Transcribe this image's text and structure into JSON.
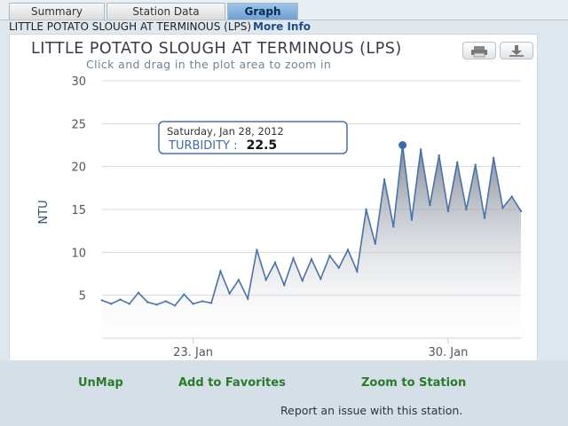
{
  "tabs": [
    {
      "label": "Summary",
      "active": false
    },
    {
      "label": "Station Data",
      "active": false
    },
    {
      "label": "Graph",
      "active": true
    }
  ],
  "station": {
    "name": "LITTLE POTATO SLOUGH AT TERMINOUS (LPS)",
    "more_info": "More Info"
  },
  "chart": {
    "title": "LITTLE POTATO SLOUGH AT TERMINOUS (LPS)",
    "subtitle": "Click and drag in the plot area to zoom in",
    "print_icon": "printer-icon",
    "export_icon": "download-icon",
    "tooltip": {
      "date": "Saturday, Jan 28, 2012",
      "series": "TURBIDITY :",
      "value": "22.5"
    }
  },
  "chart_data": {
    "type": "area",
    "title": "LITTLE POTATO SLOUGH AT TERMINOUS (LPS)",
    "ylabel": "NTU",
    "ylim": [
      0,
      30
    ],
    "yticks": [
      5,
      10,
      15,
      20,
      25,
      30
    ],
    "xlim": [
      "2012-01-20T12:00",
      "2012-02-01T00:00"
    ],
    "xticks": [
      {
        "label": "23. Jan",
        "date": "2012-01-23"
      },
      {
        "label": "30. Jan",
        "date": "2012-01-30"
      }
    ],
    "grid": true,
    "legend": "none",
    "line_color": "#4a72a8",
    "series": [
      {
        "name": "TURBIDITY",
        "points": [
          [
            "2012-01-20T12:00",
            4.4
          ],
          [
            "2012-01-20T18:00",
            4.0
          ],
          [
            "2012-01-21T00:00",
            4.5
          ],
          [
            "2012-01-21T06:00",
            4.0
          ],
          [
            "2012-01-21T12:00",
            5.3
          ],
          [
            "2012-01-21T18:00",
            4.2
          ],
          [
            "2012-01-22T00:00",
            3.9
          ],
          [
            "2012-01-22T06:00",
            4.3
          ],
          [
            "2012-01-22T12:00",
            3.8
          ],
          [
            "2012-01-22T18:00",
            5.1
          ],
          [
            "2012-01-23T00:00",
            4.0
          ],
          [
            "2012-01-23T06:00",
            4.3
          ],
          [
            "2012-01-23T12:00",
            4.1
          ],
          [
            "2012-01-23T18:00",
            7.8
          ],
          [
            "2012-01-24T00:00",
            5.2
          ],
          [
            "2012-01-24T06:00",
            6.8
          ],
          [
            "2012-01-24T12:00",
            4.6
          ],
          [
            "2012-01-24T18:00",
            10.3
          ],
          [
            "2012-01-25T00:00",
            6.8
          ],
          [
            "2012-01-25T06:00",
            8.8
          ],
          [
            "2012-01-25T12:00",
            6.2
          ],
          [
            "2012-01-25T18:00",
            9.3
          ],
          [
            "2012-01-26T00:00",
            6.7
          ],
          [
            "2012-01-26T06:00",
            9.2
          ],
          [
            "2012-01-26T12:00",
            6.9
          ],
          [
            "2012-01-26T18:00",
            9.6
          ],
          [
            "2012-01-27T00:00",
            8.2
          ],
          [
            "2012-01-27T06:00",
            10.3
          ],
          [
            "2012-01-27T12:00",
            7.8
          ],
          [
            "2012-01-27T18:00",
            15.0
          ],
          [
            "2012-01-28T00:00",
            11.0
          ],
          [
            "2012-01-28T06:00",
            18.5
          ],
          [
            "2012-01-28T12:00",
            13.0
          ],
          [
            "2012-01-28T18:00",
            22.5
          ],
          [
            "2012-01-29T00:00",
            13.8
          ],
          [
            "2012-01-29T06:00",
            22.0
          ],
          [
            "2012-01-29T12:00",
            15.5
          ],
          [
            "2012-01-29T18:00",
            21.3
          ],
          [
            "2012-01-30T00:00",
            14.8
          ],
          [
            "2012-01-30T06:00",
            20.5
          ],
          [
            "2012-01-30T12:00",
            15.0
          ],
          [
            "2012-01-30T18:00",
            20.2
          ],
          [
            "2012-01-31T00:00",
            14.0
          ],
          [
            "2012-01-31T06:00",
            21.0
          ],
          [
            "2012-01-31T12:00",
            15.2
          ],
          [
            "2012-01-31T18:00",
            16.5
          ],
          [
            "2012-02-01T00:00",
            14.8
          ]
        ]
      }
    ]
  },
  "links": {
    "unmap": "UnMap",
    "favorites": "Add to Favorites",
    "zoom": "Zoom to Station"
  },
  "report": "Report an issue with this station."
}
